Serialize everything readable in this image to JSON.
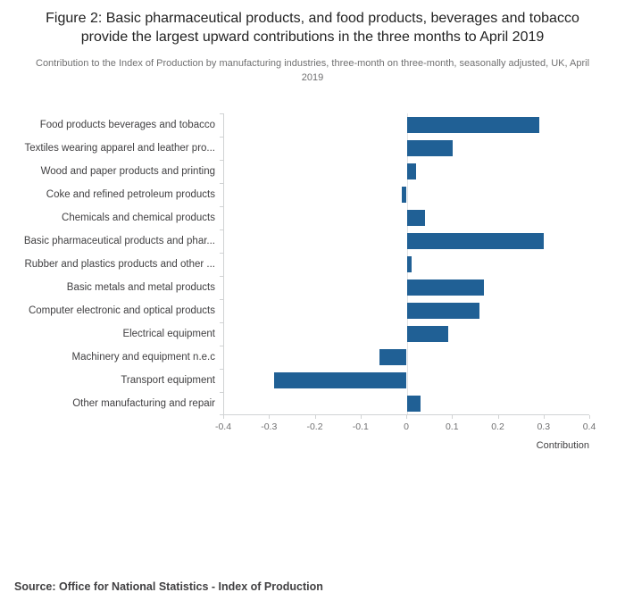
{
  "header": {
    "title": "Figure 2: Basic pharmaceutical products, and food products, beverages and tobacco provide the largest upward contributions in the three months to April 2019",
    "subtitle": "Contribution to the Index of Production by manufacturing industries, three-month on three-month, seasonally adjusted, UK, April 2019"
  },
  "chart_data": {
    "type": "bar",
    "orientation": "horizontal",
    "title": "Figure 2: Basic pharmaceutical products, and food products, beverages and tobacco provide the largest upward contributions in the three months to April 2019",
    "categories": [
      "Food products beverages and tobacco",
      "Textiles wearing apparel and leather pro...",
      "Wood and paper products and printing",
      "Coke and refined petroleum products",
      "Chemicals and chemical products",
      "Basic pharmaceutical products and phar...",
      "Rubber and plastics products and other ...",
      "Basic metals and metal products",
      "Computer electronic and optical products",
      "Electrical equipment",
      "Machinery and equipment n.e.c",
      "Transport equipment",
      "Other manufacturing and repair"
    ],
    "values": [
      0.29,
      0.1,
      0.02,
      -0.01,
      0.04,
      0.3,
      0.01,
      0.17,
      0.16,
      0.09,
      -0.06,
      -0.29,
      0.03
    ],
    "xlabel": "Contribution",
    "ylabel": "",
    "xlim": [
      -0.4,
      0.4
    ],
    "xticks": [
      -0.4,
      -0.3,
      -0.2,
      -0.1,
      0,
      0.1,
      0.2,
      0.3,
      0.4
    ],
    "xtick_labels": [
      "-0.4",
      "-0.3",
      "-0.2",
      "-0.1",
      "0",
      "0.1",
      "0.2",
      "0.3",
      "0.4"
    ],
    "bar_color": "#206095",
    "grid": false,
    "legend": false
  },
  "footer": {
    "source": "Source: Office for National Statistics - Index of Production"
  }
}
